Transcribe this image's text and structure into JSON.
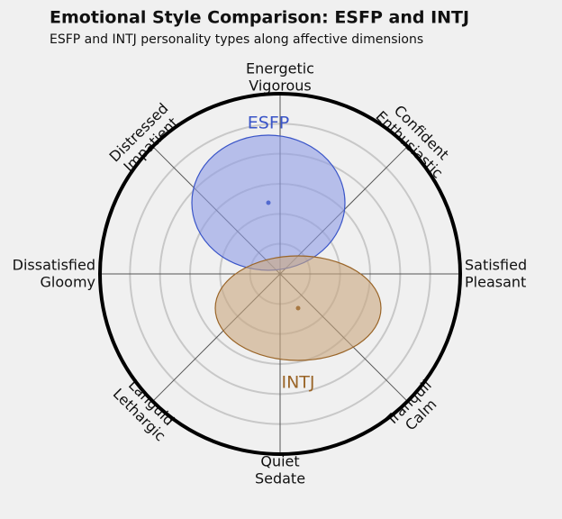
{
  "chart_data": {
    "type": "circumplex",
    "title": "Emotional Style Comparison: ESFP and INTJ",
    "subtitle": "ESFP and INTJ personality types along affective dimensions",
    "radius": 6,
    "rings": [
      1,
      2,
      3,
      4,
      5
    ],
    "axis_labels": [
      [
        "Energetic",
        "Vigorous"
      ],
      [
        "Confident",
        "Enthusiastic"
      ],
      [
        "Satisfied",
        "Pleasant"
      ],
      [
        "Tranquil",
        "Calm"
      ],
      [
        "Quiet",
        "Sedate"
      ],
      [
        "Languid",
        "Lethargic"
      ],
      [
        "Dissatisfied",
        "Gloomy"
      ],
      [
        "Distressed",
        "Impatient"
      ]
    ],
    "series": [
      {
        "name": "ESFP",
        "color": "#3a55c8",
        "fill": "#8f9de6",
        "x": -0.39,
        "y": 2.37,
        "width": 5.1,
        "height": 4.5,
        "label_position": "top"
      },
      {
        "name": "INTJ",
        "color": "#9a6528",
        "fill": "#c9a77e",
        "x": 0.6,
        "y": -1.14,
        "width": 5.52,
        "height": 3.48,
        "label_position": "bottom"
      }
    ]
  }
}
